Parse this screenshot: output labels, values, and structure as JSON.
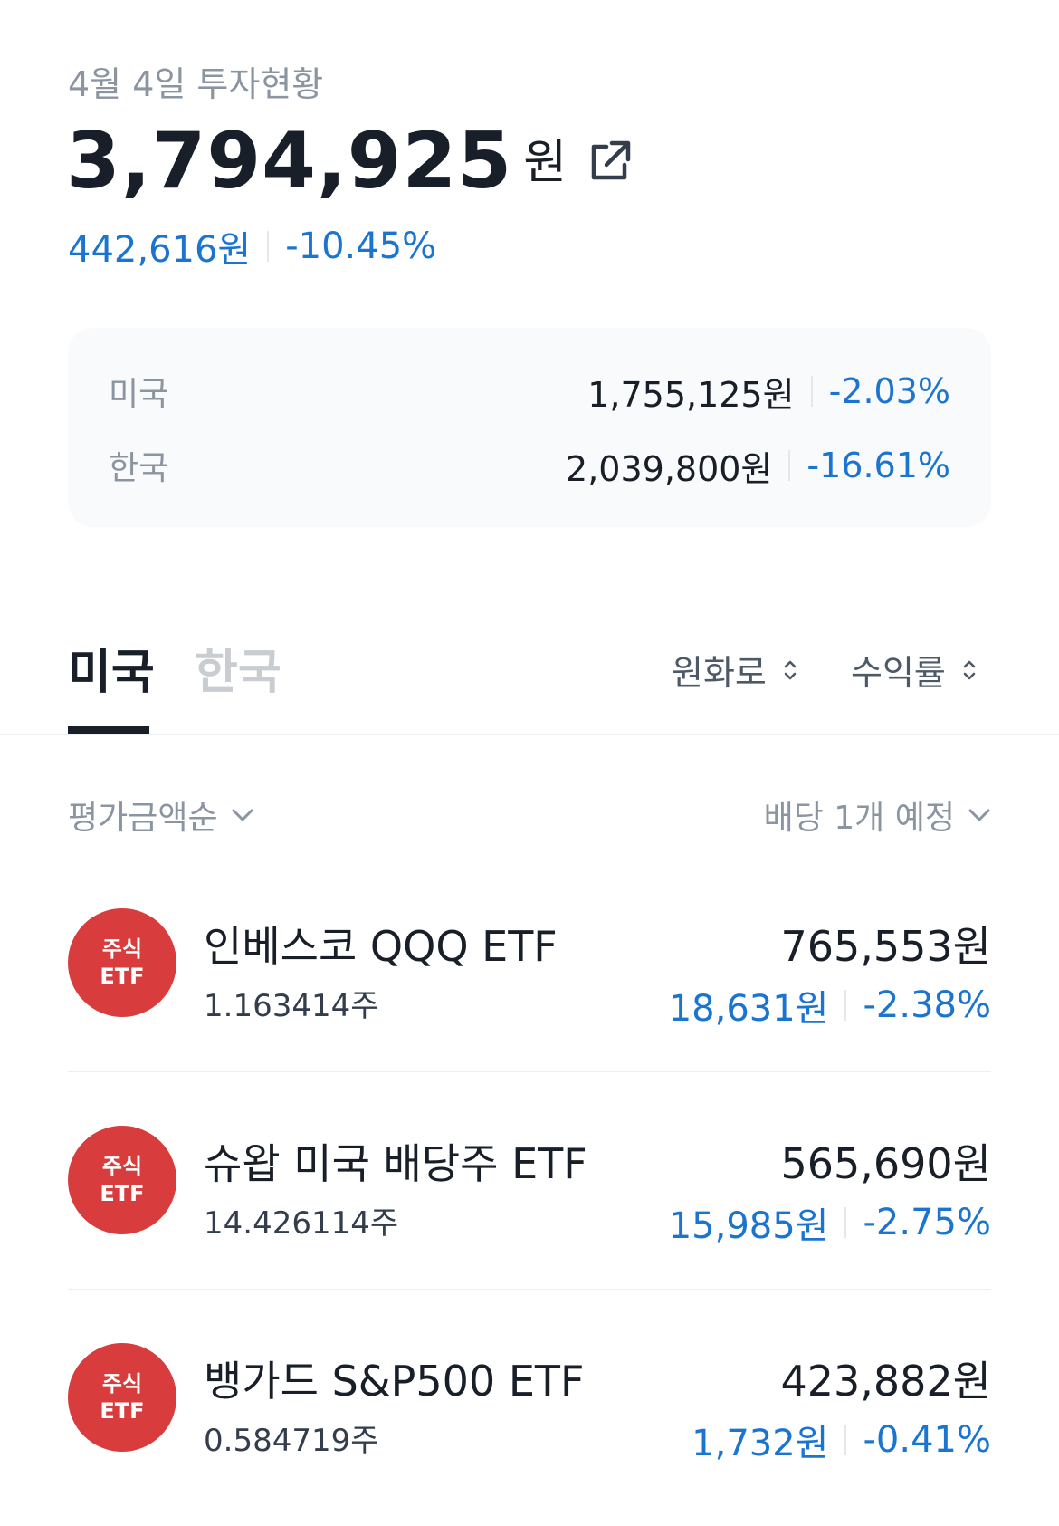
{
  "header": {
    "date_title": "4월 4일 투자현황",
    "total_amount": "3,794,925",
    "total_unit": "원",
    "profit_amount": "442,616원",
    "profit_rate": "-10.45%"
  },
  "summary": [
    {
      "label": "미국",
      "value": "1,755,125원",
      "rate": "-2.03%"
    },
    {
      "label": "한국",
      "value": "2,039,800원",
      "rate": "-16.61%"
    }
  ],
  "tabs": [
    {
      "label": "미국",
      "active": true
    },
    {
      "label": "한국",
      "active": false
    }
  ],
  "sort_toggles": {
    "currency": "원화로",
    "metric": "수익률"
  },
  "filters": {
    "order": "평가금액순",
    "dividend": "배당 1개 예정"
  },
  "holdings": [
    {
      "badge_line1": "주식",
      "badge_line2": "ETF",
      "name": "인베스코 QQQ ETF",
      "shares": "1.163414주",
      "value": "765,553원",
      "profit": "18,631원",
      "rate": "-2.38%"
    },
    {
      "badge_line1": "주식",
      "badge_line2": "ETF",
      "name": "슈왑 미국 배당주 ETF",
      "shares": "14.426114주",
      "value": "565,690원",
      "profit": "15,985원",
      "rate": "-2.75%"
    },
    {
      "badge_line1": "주식",
      "badge_line2": "ETF",
      "name": "뱅가드 S&P500 ETF",
      "shares": "0.584719주",
      "value": "423,882원",
      "profit": "1,732원",
      "rate": "-0.41%"
    }
  ],
  "colors": {
    "loss_blue": "#1b75d0",
    "badge_red": "#d93c3c",
    "muted_gray": "#8b95a1"
  }
}
